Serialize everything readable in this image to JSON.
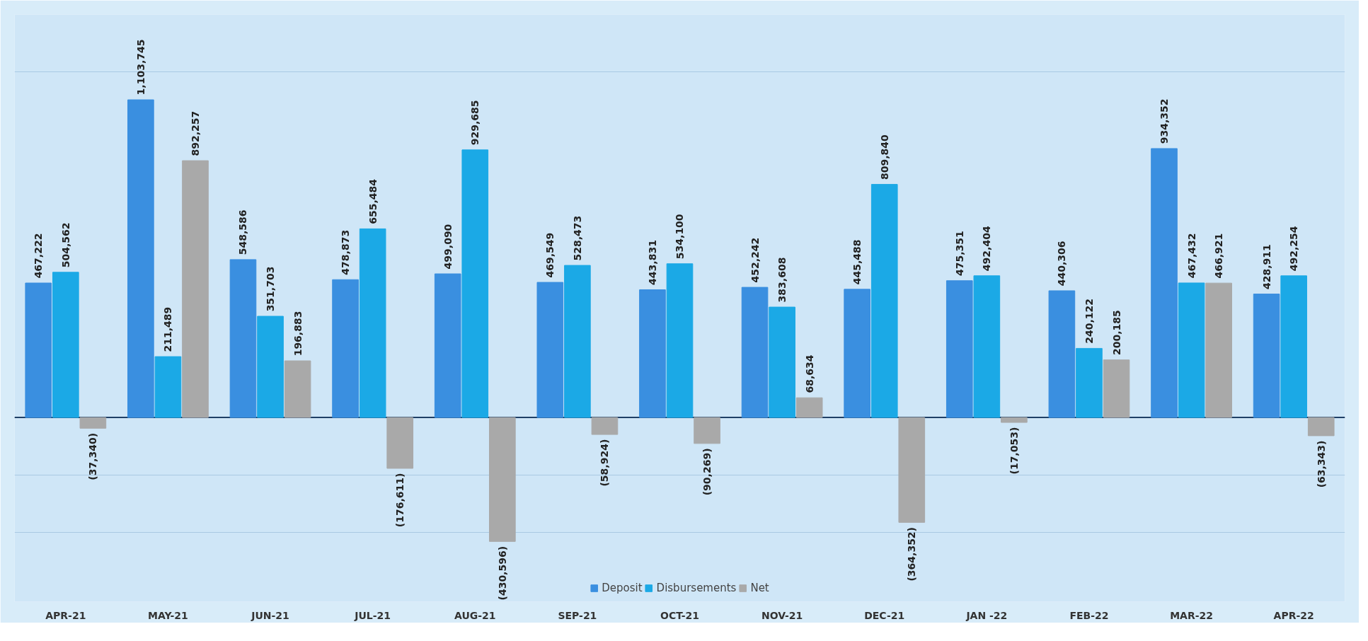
{
  "chart_data": {
    "type": "bar",
    "categories": [
      "APR-21",
      "MAY-21",
      "JUN-21",
      "JUL-21",
      "AUG-21",
      "SEP-21",
      "OCT-21",
      "NOV-21",
      "DEC-21",
      "JAN -22",
      "FEB-22",
      "MAR-22",
      "APR-22"
    ],
    "series": [
      {
        "name": "Deposit",
        "color": "#3a8fe0",
        "values": [
          467222,
          1103745,
          548586,
          478873,
          499090,
          469549,
          443831,
          452242,
          445488,
          475351,
          440306,
          934352,
          428911
        ],
        "value_labels": [
          "467,222",
          "1,103,745",
          "548,586",
          "478,873",
          "499,090",
          "469,549",
          "443,831",
          "452,242",
          "445,488",
          "475,351",
          "440,306",
          "934,352",
          "428,911"
        ]
      },
      {
        "name": "Disbursements",
        "color": "#1ba9e6",
        "values": [
          504562,
          211489,
          351703,
          655484,
          929685,
          528473,
          534100,
          383608,
          809840,
          492404,
          240122,
          467432,
          492254
        ],
        "value_labels": [
          "504,562",
          "211,489",
          "351,703",
          "655,484",
          "929,685",
          "528,473",
          "534,100",
          "383,608",
          "809,840",
          "492,404",
          "240,122",
          "467,432",
          "492,254"
        ]
      },
      {
        "name": "Net",
        "color": "#a9a9a9",
        "values": [
          -37340,
          892257,
          196883,
          -176611,
          -430596,
          -58924,
          -90269,
          68634,
          -364352,
          -17053,
          200185,
          466921,
          -63343
        ],
        "value_labels": [
          "(37,340)",
          "892,257",
          "196,883",
          "(176,611)",
          "(430,596)",
          "(58,924)",
          "(90,269)",
          "68,634",
          "(364,352)",
          "(17,053)",
          "200,185",
          "466,921",
          "(63,343)"
        ]
      }
    ],
    "ylim": [
      -640000,
      1400000
    ],
    "ref_lines": [
      {
        "axis": "y",
        "value": 0,
        "color": "#1f3f66"
      }
    ],
    "yticks": [
      {
        "value": -400000,
        "label": null
      },
      {
        "value": -200000,
        "label": null
      },
      {
        "value": 0,
        "label": null
      },
      {
        "value": 1200000,
        "label": null
      }
    ],
    "grid": "y",
    "tick_labels": "x",
    "legend": "bottom"
  }
}
